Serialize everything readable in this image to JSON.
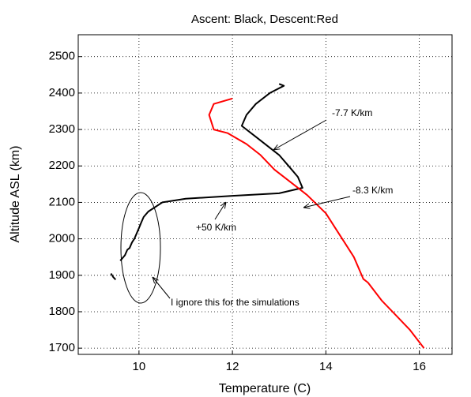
{
  "chart_data": {
    "type": "line",
    "title": "Ascent: Black, Descent:Red",
    "xlabel": "Temperature (C)",
    "ylabel": "Altitude ASL (km)",
    "xlim": [
      8.7,
      16.7
    ],
    "ylim": [
      1683,
      2560
    ],
    "xticks": [
      10,
      12,
      14,
      16
    ],
    "yticks": [
      1700,
      1800,
      1900,
      2000,
      2100,
      2200,
      2300,
      2400,
      2500
    ],
    "grid": true,
    "series": [
      {
        "color": "#000000",
        "x": [
          9.4,
          9.45,
          9.5,
          null,
          9.6,
          9.7,
          9.75,
          9.8,
          9.85,
          9.9,
          10.0,
          10.05,
          10.1,
          10.2,
          10.5,
          11.0,
          12.0,
          13.0,
          13.5,
          13.4,
          13.2,
          13.0,
          12.8,
          12.5,
          12.2,
          12.3,
          12.5,
          12.8,
          13.1,
          13.0
        ],
        "y": [
          1905,
          1895,
          1888,
          null,
          1940,
          1955,
          1970,
          1975,
          1990,
          2000,
          2030,
          2045,
          2060,
          2075,
          2100,
          2110,
          2118,
          2125,
          2140,
          2170,
          2200,
          2230,
          2250,
          2280,
          2310,
          2340,
          2370,
          2400,
          2420,
          2425
        ]
      },
      {
        "color": "#ff0000",
        "x": [
          12.0,
          11.6,
          11.5,
          11.6,
          11.9,
          12.3,
          12.6,
          12.9,
          13.3,
          13.6,
          14.0,
          14.2,
          14.4,
          14.6,
          14.7,
          14.8,
          14.9,
          15.2,
          15.5,
          15.8,
          16.1
        ],
        "y": [
          2385,
          2370,
          2340,
          2300,
          2290,
          2260,
          2230,
          2190,
          2150,
          2120,
          2070,
          2030,
          1990,
          1950,
          1920,
          1890,
          1880,
          1830,
          1790,
          1750,
          1700
        ]
      }
    ],
    "annotations": [
      "-7.7 K/km",
      "-8.3 K/km",
      "+50 K/km",
      "I ignore this for the simulations"
    ]
  }
}
